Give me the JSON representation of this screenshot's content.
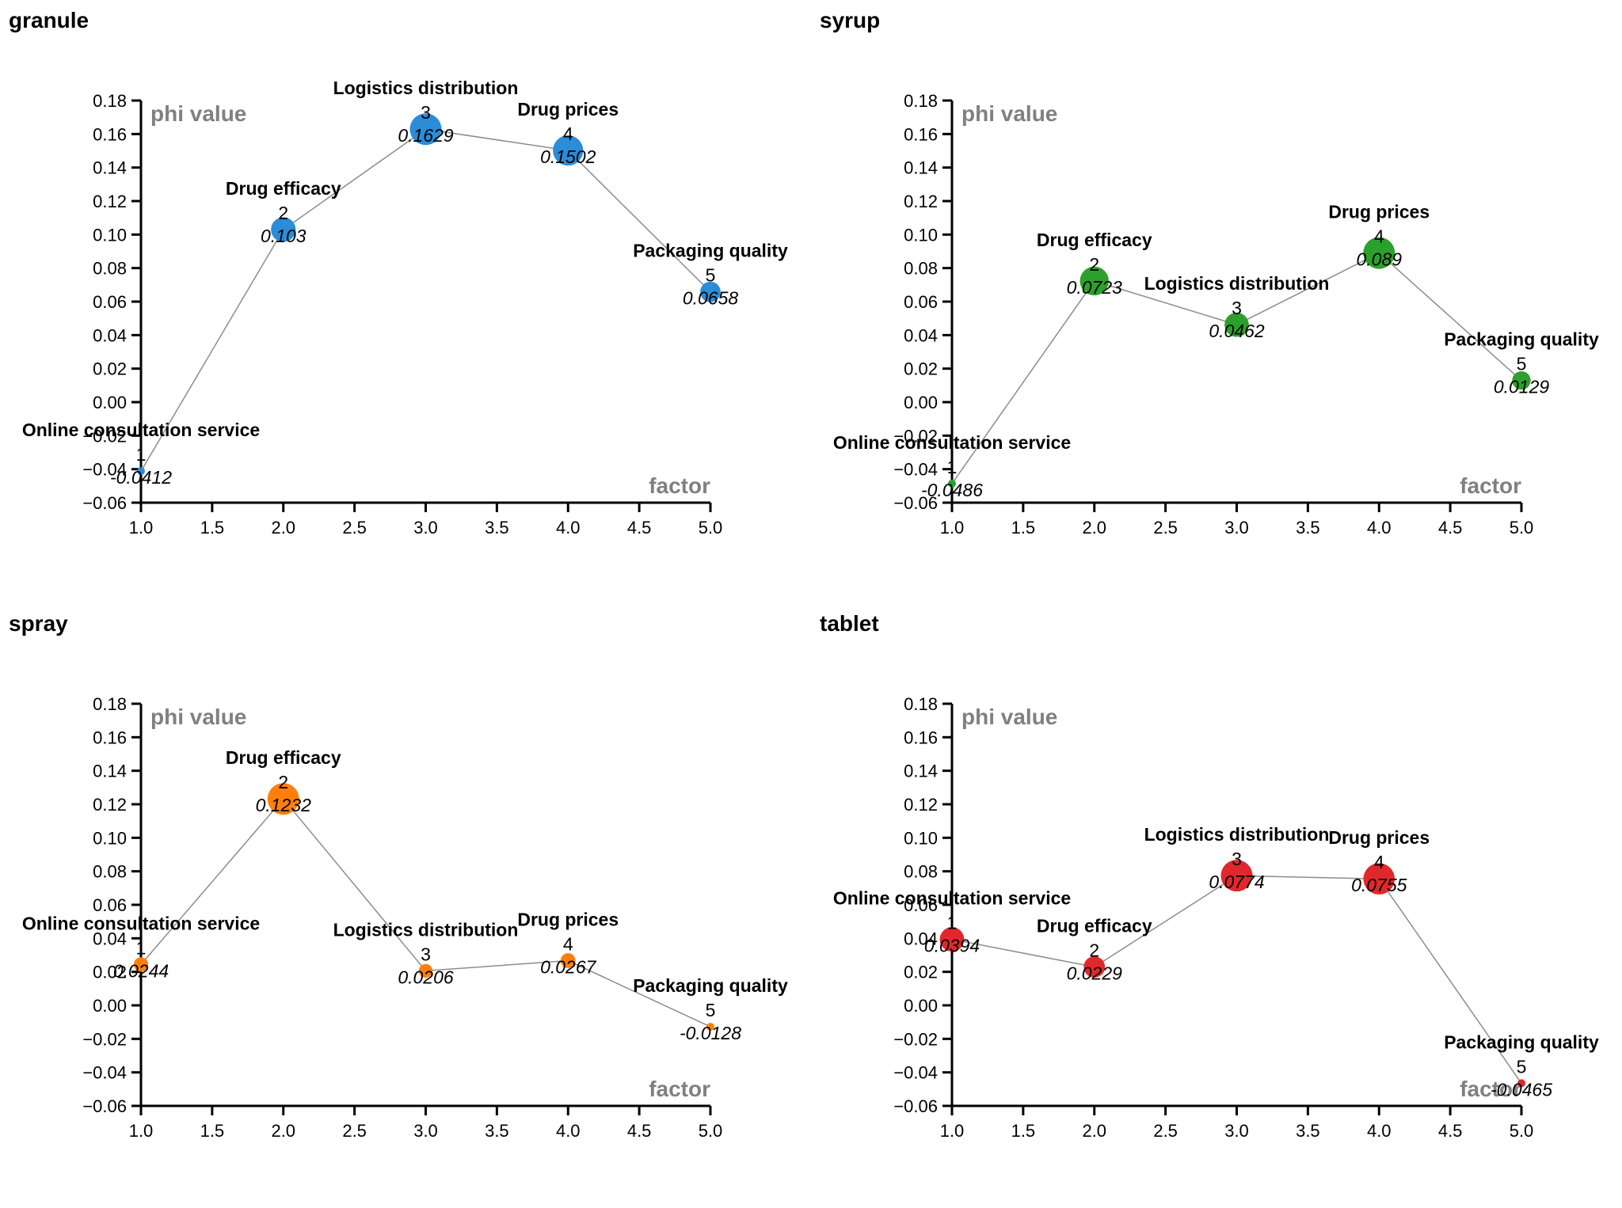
{
  "chart_data": [
    {
      "type": "scatter",
      "title": "granule",
      "xlabel": "factor",
      "ylabel": "phi value",
      "xlim": [
        1.0,
        5.0
      ],
      "ylim": [
        -0.06,
        0.18
      ],
      "xticks": [
        "1.0",
        "1.5",
        "2.0",
        "2.5",
        "3.0",
        "3.5",
        "4.0",
        "4.5",
        "5.0"
      ],
      "yticks": [
        "0.18",
        "0.16",
        "0.14",
        "0.12",
        "0.10",
        "0.08",
        "0.06",
        "0.04",
        "0.02",
        "0.00",
        "-0.02",
        "-0.04",
        "-0.06"
      ],
      "color": "#2b8cd8",
      "grid": false,
      "points": [
        {
          "x": 1,
          "y": -0.0412,
          "rank": "1",
          "name": "Online consultation service",
          "label": "-0.0412"
        },
        {
          "x": 2,
          "y": 0.103,
          "rank": "2",
          "name": "Drug efficacy",
          "label": "0.103"
        },
        {
          "x": 3,
          "y": 0.1629,
          "rank": "3",
          "name": "Logistics distribution",
          "label": "0.1629"
        },
        {
          "x": 4,
          "y": 0.1502,
          "rank": "4",
          "name": "Drug prices",
          "label": "0.1502"
        },
        {
          "x": 5,
          "y": 0.0658,
          "rank": "5",
          "name": "Packaging quality",
          "label": "0.0658"
        }
      ]
    },
    {
      "type": "scatter",
      "title": "syrup",
      "xlabel": "factor",
      "ylabel": "phi value",
      "xlim": [
        1.0,
        5.0
      ],
      "ylim": [
        -0.06,
        0.18
      ],
      "xticks": [
        "1.0",
        "1.5",
        "2.0",
        "2.5",
        "3.0",
        "3.5",
        "4.0",
        "4.5",
        "5.0"
      ],
      "yticks": [
        "0.18",
        "0.16",
        "0.14",
        "0.12",
        "0.10",
        "0.08",
        "0.06",
        "0.04",
        "0.02",
        "0.00",
        "-0.02",
        "-0.04",
        "-0.06"
      ],
      "color": "#2ca02c",
      "grid": false,
      "points": [
        {
          "x": 1,
          "y": -0.0486,
          "rank": "1",
          "name": "Online consultation service",
          "label": "-0.0486"
        },
        {
          "x": 2,
          "y": 0.0723,
          "rank": "2",
          "name": "Drug efficacy",
          "label": "0.0723"
        },
        {
          "x": 3,
          "y": 0.0462,
          "rank": "3",
          "name": "Logistics distribution",
          "label": "0.0462"
        },
        {
          "x": 4,
          "y": 0.089,
          "rank": "4",
          "name": "Drug prices",
          "label": "0.089"
        },
        {
          "x": 5,
          "y": 0.0129,
          "rank": "5",
          "name": "Packaging quality",
          "label": "0.0129"
        }
      ]
    },
    {
      "type": "scatter",
      "title": "spray",
      "xlabel": "factor",
      "ylabel": "phi value",
      "xlim": [
        1.0,
        5.0
      ],
      "ylim": [
        -0.06,
        0.18
      ],
      "xticks": [
        "1.0",
        "1.5",
        "2.0",
        "2.5",
        "3.0",
        "3.5",
        "4.0",
        "4.5",
        "5.0"
      ],
      "yticks": [
        "0.18",
        "0.16",
        "0.14",
        "0.12",
        "0.10",
        "0.08",
        "0.06",
        "0.04",
        "0.02",
        "0.00",
        "-0.02",
        "-0.04",
        "-0.06"
      ],
      "color": "#ff7f0e",
      "grid": false,
      "points": [
        {
          "x": 1,
          "y": 0.0244,
          "rank": "1",
          "name": "Online consultation service",
          "label": "0.0244"
        },
        {
          "x": 2,
          "y": 0.1232,
          "rank": "2",
          "name": "Drug efficacy",
          "label": "0.1232"
        },
        {
          "x": 3,
          "y": 0.0206,
          "rank": "3",
          "name": "Logistics distribution",
          "label": "0.0206"
        },
        {
          "x": 4,
          "y": 0.0267,
          "rank": "4",
          "name": "Drug prices",
          "label": "0.0267"
        },
        {
          "x": 5,
          "y": -0.0128,
          "rank": "5",
          "name": "Packaging quality",
          "label": "-0.0128"
        }
      ]
    },
    {
      "type": "scatter",
      "title": "tablet",
      "xlabel": "factor",
      "ylabel": "phi value",
      "xlim": [
        1.0,
        5.0
      ],
      "ylim": [
        -0.06,
        0.18
      ],
      "xticks": [
        "1.0",
        "1.5",
        "2.0",
        "2.5",
        "3.0",
        "3.5",
        "4.0",
        "4.5",
        "5.0"
      ],
      "yticks": [
        "0.18",
        "0.16",
        "0.14",
        "0.12",
        "0.10",
        "0.08",
        "0.06",
        "0.04",
        "0.02",
        "0.00",
        "-0.02",
        "-0.04",
        "-0.06"
      ],
      "color": "#e0282c",
      "grid": false,
      "points": [
        {
          "x": 1,
          "y": 0.0394,
          "rank": "1",
          "name": "Online consultation service",
          "label": "0.0394"
        },
        {
          "x": 2,
          "y": 0.0229,
          "rank": "2",
          "name": "Drug efficacy",
          "label": "0.0229"
        },
        {
          "x": 3,
          "y": 0.0774,
          "rank": "3",
          "name": "Logistics distribution",
          "label": "0.0774"
        },
        {
          "x": 4,
          "y": 0.0755,
          "rank": "4",
          "name": "Drug prices",
          "label": "0.0755"
        },
        {
          "x": 5,
          "y": -0.0465,
          "rank": "5",
          "name": "Packaging quality",
          "label": "-0.0465"
        }
      ]
    }
  ]
}
